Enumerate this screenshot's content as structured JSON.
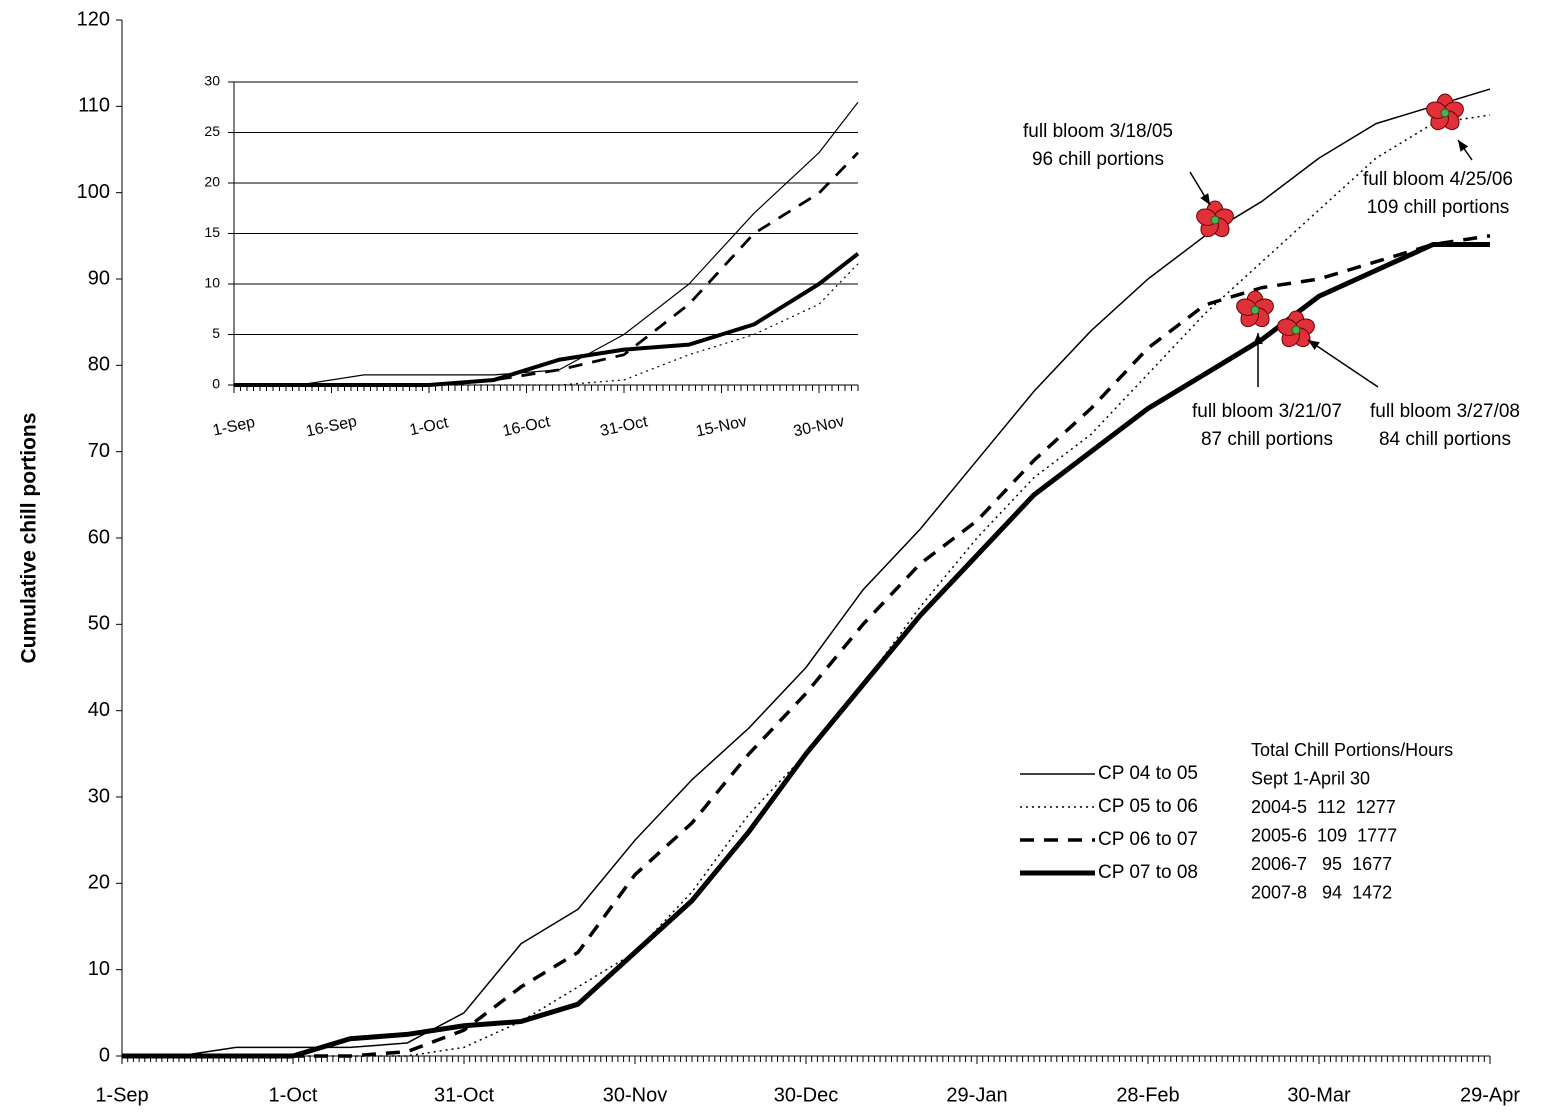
{
  "chart_data": [
    {
      "type": "line",
      "y_label": "Cumulative chill portions",
      "x": [
        0,
        10,
        20,
        30,
        40,
        50,
        60,
        70,
        80,
        90,
        100,
        110,
        120,
        130,
        140,
        150,
        160,
        170,
        180,
        190,
        200,
        210,
        220,
        230,
        240
      ],
      "xlim": [
        0,
        240
      ],
      "xticks": [
        {
          "value": 0,
          "label": "1-Sep"
        },
        {
          "value": 30,
          "label": "1-Oct"
        },
        {
          "value": 60,
          "label": "31-Oct"
        },
        {
          "value": 90,
          "label": "30-Nov"
        },
        {
          "value": 120,
          "label": "30-Dec"
        },
        {
          "value": 150,
          "label": "29-Jan"
        },
        {
          "value": 180,
          "label": "28-Feb"
        },
        {
          "value": 210,
          "label": "30-Mar"
        },
        {
          "value": 240,
          "label": "29-Apr"
        }
      ],
      "ylim": [
        0,
        120
      ],
      "yticks": [
        0,
        10,
        20,
        30,
        40,
        50,
        60,
        70,
        80,
        90,
        100,
        110,
        120
      ],
      "grid": false,
      "series": [
        {
          "name": "CP 04 to 05",
          "color": "#000000",
          "style": "solid",
          "values": [
            0,
            0,
            1,
            1,
            1,
            1.5,
            5,
            13,
            17,
            25,
            32,
            38,
            45,
            54,
            61,
            69,
            77,
            84,
            90,
            95,
            99,
            104,
            108,
            110,
            112
          ]
        },
        {
          "name": "CP 05 to 06",
          "color": "#000000",
          "style": "dotted",
          "values": [
            0,
            0,
            0,
            0,
            0,
            0,
            1,
            4,
            8,
            12,
            19,
            28,
            35,
            43,
            52,
            60,
            67,
            72,
            79,
            86,
            92,
            98,
            104,
            108,
            109
          ]
        },
        {
          "name": "CP 06 to 07",
          "color": "#000000",
          "style": "dashed",
          "values": [
            0,
            0,
            0,
            0,
            0,
            0.5,
            3,
            8,
            12,
            21,
            27,
            35,
            42,
            50,
            57,
            62,
            69,
            75,
            82,
            87,
            89,
            90,
            92,
            94,
            95
          ]
        },
        {
          "name": "CP 07 to 08",
          "color": "#000000",
          "style": "thick",
          "values": [
            0,
            0,
            0,
            0,
            2,
            2.5,
            3.5,
            4,
            6,
            12,
            18,
            26,
            35,
            43,
            51,
            58,
            65,
            70,
            75,
            79,
            83,
            88,
            91,
            94,
            94
          ]
        }
      ],
      "annotations": [
        [
          "full bloom 3/18/05",
          "96 chill portions"
        ],
        [
          "full bloom 4/25/06",
          "109 chill portions"
        ],
        [
          "full bloom 3/21/07",
          "87 chill portions"
        ],
        [
          "full bloom 3/27/08",
          "84 chill portions"
        ]
      ],
      "summary": [
        "Total Chill Portions/Hours",
        "Sept 1-April 30",
        "2004-5  112  1277",
        "2005-6  109  1777",
        "2006-7   95  1677",
        "2007-8   94  1472"
      ]
    },
    {
      "type": "line",
      "x": [
        0,
        10,
        20,
        30,
        40,
        50,
        60,
        70,
        80,
        90,
        96
      ],
      "xlim": [
        0,
        96
      ],
      "xticks": [
        {
          "value": 0,
          "label": "1-Sep"
        },
        {
          "value": 15,
          "label": "16-Sep"
        },
        {
          "value": 30,
          "label": "1-Oct"
        },
        {
          "value": 45,
          "label": "16-Oct"
        },
        {
          "value": 60,
          "label": "31-Oct"
        },
        {
          "value": 75,
          "label": "15-Nov"
        },
        {
          "value": 90,
          "label": "30-Nov"
        }
      ],
      "ylim": [
        0,
        30
      ],
      "yticks": [
        0,
        5,
        10,
        15,
        20,
        25,
        30
      ],
      "grid": true,
      "series": [
        {
          "name": "CP 04 to 05",
          "color": "#000000",
          "style": "solid",
          "values": [
            0,
            0,
            1,
            1,
            1,
            1.5,
            5,
            10,
            17,
            23,
            28
          ]
        },
        {
          "name": "CP 05 to 06",
          "color": "#000000",
          "style": "dotted",
          "values": [
            0,
            0,
            0,
            0,
            0,
            0,
            0.5,
            3,
            5,
            8,
            12
          ]
        },
        {
          "name": "CP 06 to 07",
          "color": "#000000",
          "style": "dashed",
          "values": [
            0,
            0,
            0,
            0,
            0.5,
            1.5,
            3,
            8,
            15,
            19,
            23
          ]
        },
        {
          "name": "CP 07 to 08",
          "color": "#000000",
          "style": "thick",
          "values": [
            0,
            0,
            0,
            0,
            0.5,
            2.5,
            3.5,
            4,
            6,
            10,
            13
          ]
        }
      ]
    }
  ]
}
